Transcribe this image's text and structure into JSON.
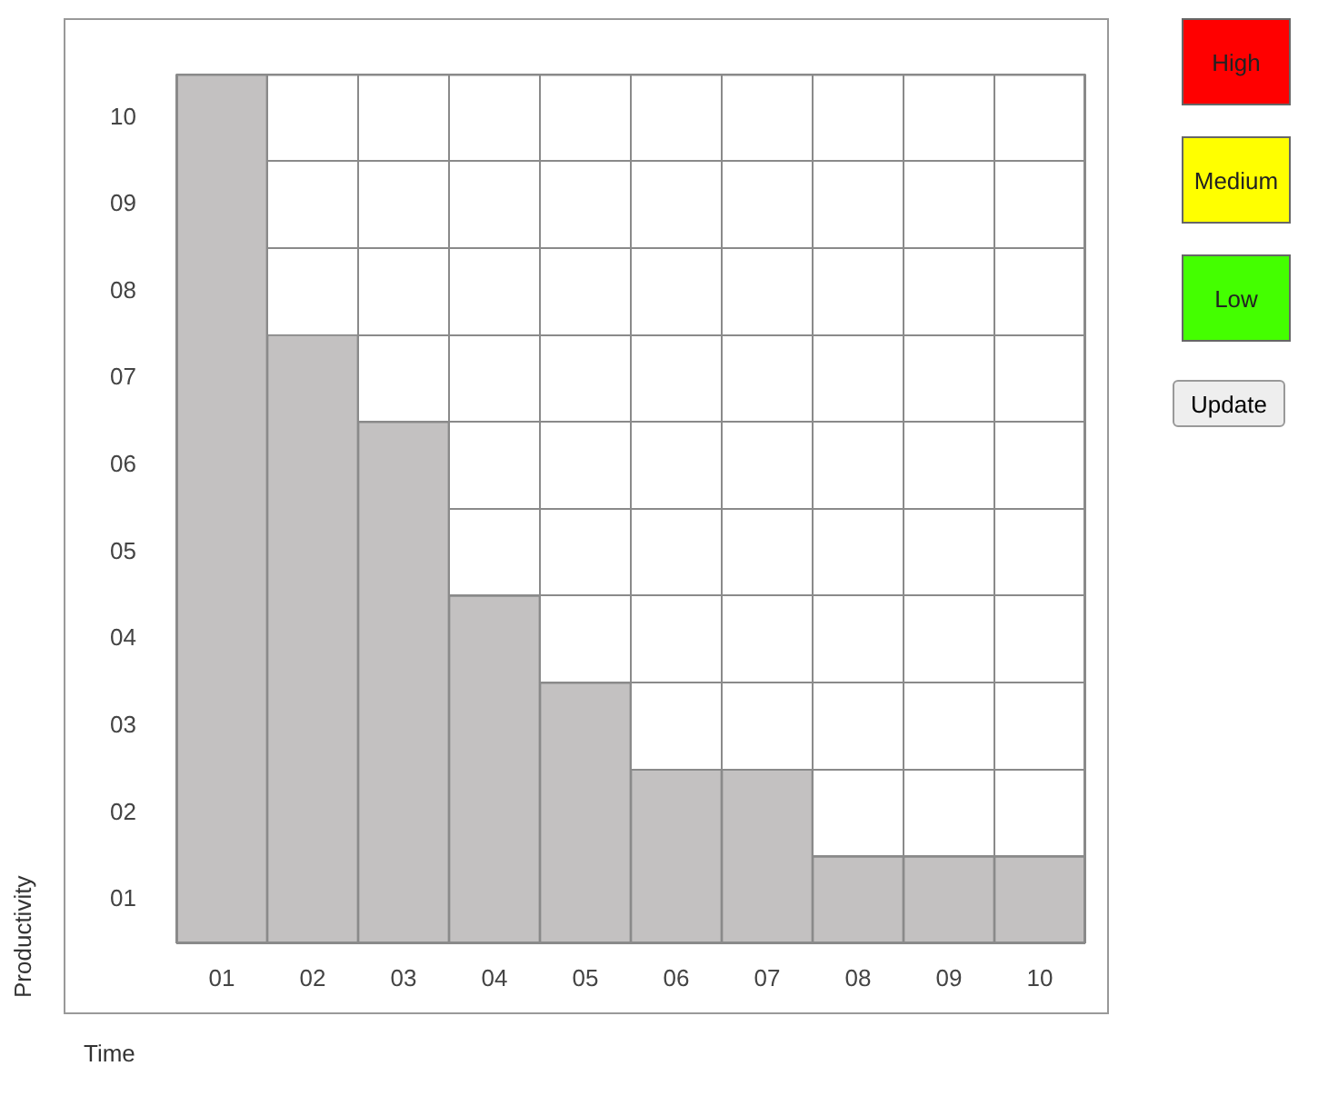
{
  "chart_data": {
    "type": "bar",
    "xlabel": "Time",
    "ylabel": "Productivity",
    "categories": [
      "01",
      "02",
      "03",
      "04",
      "05",
      "06",
      "07",
      "08",
      "09",
      "10"
    ],
    "values": [
      10,
      7,
      6,
      4,
      3,
      2,
      2,
      1,
      1,
      1
    ],
    "color": "#c3c1c1",
    "ylim": [
      0,
      10
    ],
    "yticks": [
      {
        "value": 0,
        "label": null
      },
      {
        "value": 0.5,
        "label": "01"
      },
      {
        "value": 1,
        "label": null
      },
      {
        "value": 1.5,
        "label": "02"
      },
      {
        "value": 2,
        "label": null
      },
      {
        "value": 2.5,
        "label": "03"
      },
      {
        "value": 3,
        "label": null
      },
      {
        "value": 3.5,
        "label": "04"
      },
      {
        "value": 4,
        "label": null
      },
      {
        "value": 4.5,
        "label": "05"
      },
      {
        "value": 5,
        "label": null
      },
      {
        "value": 5.5,
        "label": "06"
      },
      {
        "value": 6,
        "label": null
      },
      {
        "value": 6.5,
        "label": "07"
      },
      {
        "value": 7,
        "label": null
      },
      {
        "value": 7.5,
        "label": "08"
      },
      {
        "value": 8,
        "label": null
      },
      {
        "value": 8.5,
        "label": "09"
      },
      {
        "value": 9,
        "label": null
      },
      {
        "value": 9.5,
        "label": "10"
      },
      {
        "value": 10,
        "label": null
      }
    ],
    "grid": true,
    "legend": false,
    "annotations": [
      "High",
      "Medium",
      "Low",
      "Update"
    ]
  }
}
